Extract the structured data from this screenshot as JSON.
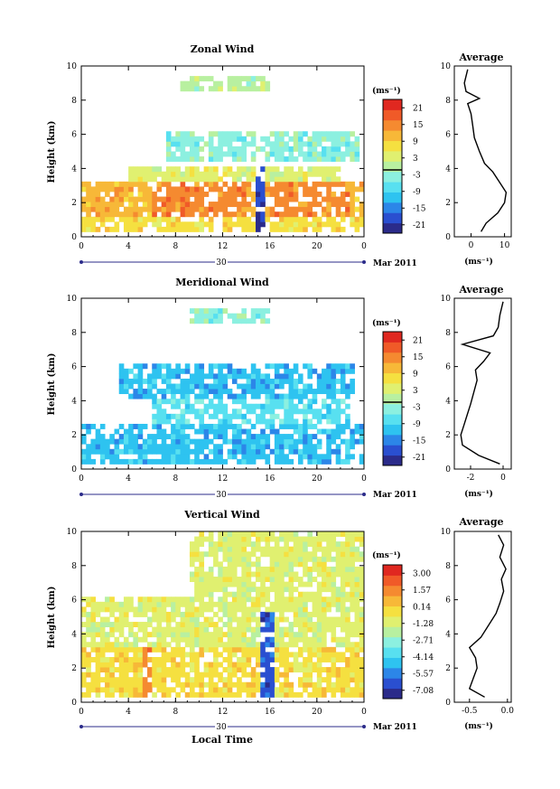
{
  "colors": {
    "scale": [
      "#2b2b8a",
      "#2a4fd0",
      "#2c86e8",
      "#2ec3f0",
      "#58e0f0",
      "#8cf0e0",
      "#b8f0a0",
      "#e0f070",
      "#f5e040",
      "#f7b838",
      "#f58a30",
      "#f05a28",
      "#e02820"
    ]
  },
  "common": {
    "ylabel": "Height (km)",
    "xticks": [
      "0",
      "4",
      "8",
      "12",
      "16",
      "20",
      "0"
    ],
    "yticks": [
      "0",
      "2",
      "4",
      "6",
      "8",
      "10"
    ],
    "day_label": "30",
    "month_label": "Mar 2011",
    "unit": "(ms⁻¹)",
    "avg_title": "Average"
  },
  "xlabel_bottom": "Local Time",
  "chart_data": [
    {
      "type": "heatmap",
      "title": "Zonal Wind",
      "xlabel": "",
      "ylabel": "Height (km)",
      "xlim": [
        0,
        24
      ],
      "ylim": [
        0,
        10
      ],
      "color_levels": [
        "-21",
        "-15",
        "-9",
        "-3",
        "3",
        "9",
        "15",
        "21"
      ],
      "avg_profile": {
        "xticks": [
          "0",
          "10"
        ],
        "xlim": [
          -5,
          12
        ],
        "heights": [
          0.3,
          0.8,
          1.4,
          2.0,
          2.6,
          3.2,
          3.8,
          4.3,
          5.0,
          5.8,
          6.5,
          7.2,
          7.8,
          8.1,
          8.5,
          9.0,
          9.8
        ],
        "values": [
          3.0,
          4.5,
          8.0,
          10.0,
          10.5,
          8.5,
          6.5,
          4.0,
          2.5,
          1.0,
          0.5,
          0.0,
          -1.0,
          2.5,
          -1.5,
          -2.0,
          -1.0
        ]
      }
    },
    {
      "type": "heatmap",
      "title": "Meridional Wind",
      "xlabel": "",
      "ylabel": "Height (km)",
      "xlim": [
        0,
        24
      ],
      "ylim": [
        0,
        10
      ],
      "color_levels": [
        "-21",
        "-15",
        "-9",
        "-3",
        "3",
        "9",
        "15",
        "21"
      ],
      "avg_profile": {
        "xticks": [
          "-2",
          "0"
        ],
        "xlim": [
          -3,
          0.5
        ],
        "heights": [
          0.3,
          0.8,
          1.4,
          2.0,
          2.6,
          3.2,
          3.8,
          4.5,
          5.2,
          5.8,
          6.3,
          6.8,
          7.3,
          7.8,
          8.3,
          9.0,
          9.8
        ],
        "values": [
          -0.2,
          -1.5,
          -2.5,
          -2.6,
          -2.4,
          -2.2,
          -2.0,
          -1.8,
          -1.6,
          -1.7,
          -1.2,
          -0.8,
          -2.5,
          -0.6,
          -0.3,
          -0.2,
          0.0
        ]
      }
    },
    {
      "type": "heatmap",
      "title": "Vertical Wind",
      "xlabel": "Local Time",
      "ylabel": "Height (km)",
      "xlim": [
        0,
        24
      ],
      "ylim": [
        0,
        10
      ],
      "color_levels": [
        "-7.08",
        "-5.57",
        "-4.14",
        "-2.71",
        "-1.28",
        "0.14",
        "1.57",
        "3.00"
      ],
      "avg_profile": {
        "xticks": [
          "-0.5",
          "0.0"
        ],
        "xlim": [
          -0.7,
          0.05
        ],
        "heights": [
          0.3,
          0.8,
          1.4,
          2.0,
          2.6,
          3.2,
          3.8,
          4.5,
          5.2,
          5.8,
          6.5,
          7.2,
          7.8,
          8.5,
          9.2,
          9.8
        ],
        "values": [
          -0.3,
          -0.5,
          -0.45,
          -0.4,
          -0.42,
          -0.5,
          -0.35,
          -0.25,
          -0.15,
          -0.1,
          -0.05,
          -0.08,
          -0.02,
          -0.1,
          -0.05,
          -0.12
        ]
      }
    }
  ]
}
